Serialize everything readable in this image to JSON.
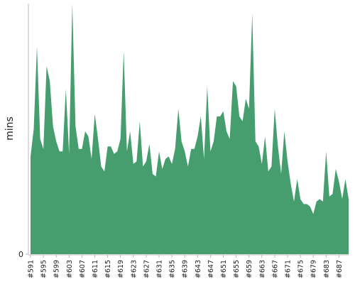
{
  "chart_data": {
    "type": "area",
    "y_label": "mins",
    "color": "#469e6e",
    "categories": [
      "#591",
      null,
      null,
      null,
      "#595",
      null,
      null,
      null,
      "#599",
      null,
      null,
      null,
      "#603",
      null,
      null,
      null,
      "#607",
      null,
      null,
      null,
      "#611",
      null,
      null,
      null,
      "#615",
      null,
      null,
      null,
      "#619",
      null,
      null,
      null,
      "#623",
      null,
      null,
      null,
      "#627",
      null,
      null,
      null,
      "#631",
      null,
      null,
      null,
      "#635",
      null,
      null,
      null,
      "#639",
      null,
      null,
      null,
      "#643",
      null,
      null,
      null,
      "#647",
      null,
      null,
      null,
      "#651",
      null,
      null,
      null,
      "#655",
      null,
      null,
      null,
      "#659",
      null,
      null,
      null,
      "#663",
      null,
      null,
      null,
      "#667",
      null,
      null,
      null,
      "#671",
      null,
      null,
      null,
      "#675",
      null,
      null,
      null,
      "#679",
      null,
      null,
      null,
      "#683",
      null,
      null,
      null,
      "#687",
      null,
      null,
      null
    ],
    "values": [
      39,
      50,
      83,
      46,
      42,
      75,
      69,
      51,
      45,
      41,
      41,
      66,
      40,
      100,
      51,
      42,
      42,
      49,
      47,
      38,
      56,
      46,
      35,
      33,
      43,
      43,
      40,
      41,
      46,
      81,
      41,
      49,
      36,
      37,
      53,
      35,
      37,
      44,
      32,
      31,
      41,
      34,
      38,
      39,
      36,
      42,
      58,
      45,
      41,
      35,
      42,
      42,
      47,
      55,
      38,
      67,
      41,
      45,
      55,
      55,
      57,
      49,
      46,
      69,
      67,
      55,
      53,
      62,
      58,
      96,
      45,
      43,
      36,
      47,
      33,
      35,
      58,
      43,
      32,
      49,
      37,
      28,
      21,
      30,
      22,
      20,
      20,
      19,
      16,
      21,
      22,
      21,
      41,
      23,
      24,
      34,
      29,
      22,
      30,
      22
    ],
    "ylim": [
      0,
      100
    ],
    "yticks": [
      0
    ]
  }
}
